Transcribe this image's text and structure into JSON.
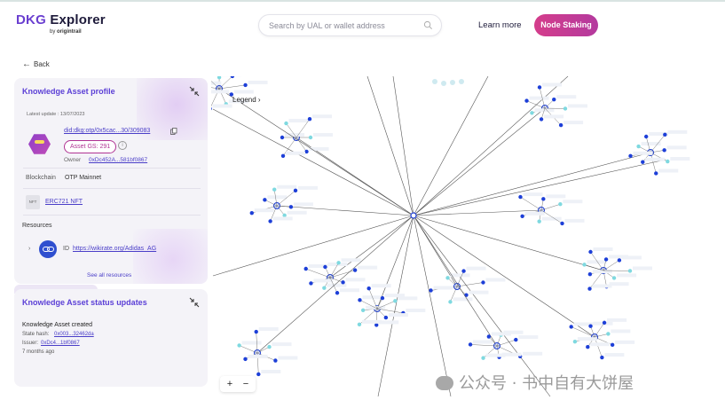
{
  "header": {
    "logo_title_accent": "DKG",
    "logo_title_rest": "Explorer",
    "logo_by": "by",
    "logo_brand": "origintrail",
    "search_placeholder": "Search by UAL or wallet address",
    "learn_more": "Learn more",
    "node_staking": "Node Staking"
  },
  "nav": {
    "back_label": "Back"
  },
  "profile": {
    "title": "Knowledge Asset profile",
    "latest_update": "Latest update : 13/07/2023",
    "ual": "did:dkg:otp/0x5cac...30/309083",
    "gs_badge": "Asset GS: 291",
    "owner_label": "Owner",
    "owner_value": "0xDc452A...581bf0867",
    "blockchain_label": "Blockchain",
    "blockchain_value": "OTP Mainnet",
    "nft_chip": "NFT",
    "nft_value": "ERC721 NFT",
    "resources_label": "Resources",
    "resource_id_label": "ID",
    "resource_id_value": "https://wikirate.org/Adidas_AG",
    "see_all": "See all resources"
  },
  "status": {
    "title": "Knowledge Asset status updates",
    "event": "Knowledge Asset created",
    "state_label": "State hash:",
    "state_value": "0x003...32462da",
    "issuer_label": "Issuer:",
    "issuer_value": "0xDc4...1bf0867",
    "ago": "7 months ago"
  },
  "graph": {
    "legend_label": "Legend",
    "zoom_in": "+",
    "zoom_out": "−",
    "node_color": "#1d3fd8",
    "edge_color": "#555555"
  },
  "watermark": "公众号 · 书中自有大饼屋",
  "colors": {
    "accent": "#5b3fd6",
    "staking": "#c83b92",
    "link": "#4a3ec8"
  }
}
